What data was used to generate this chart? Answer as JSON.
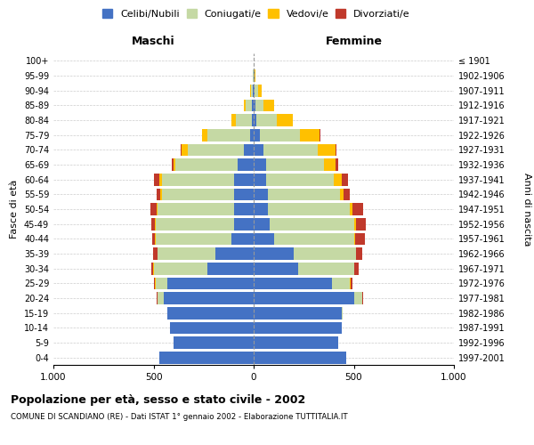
{
  "age_groups": [
    "0-4",
    "5-9",
    "10-14",
    "15-19",
    "20-24",
    "25-29",
    "30-34",
    "35-39",
    "40-44",
    "45-49",
    "50-54",
    "55-59",
    "60-64",
    "65-69",
    "70-74",
    "75-79",
    "80-84",
    "85-89",
    "90-94",
    "95-99",
    "100+"
  ],
  "birth_years": [
    "1997-2001",
    "1992-1996",
    "1987-1991",
    "1982-1986",
    "1977-1981",
    "1972-1976",
    "1967-1971",
    "1962-1966",
    "1957-1961",
    "1952-1956",
    "1947-1951",
    "1942-1946",
    "1937-1941",
    "1932-1936",
    "1927-1931",
    "1922-1926",
    "1917-1921",
    "1912-1916",
    "1907-1911",
    "1902-1906",
    "≤ 1901"
  ],
  "maschi": {
    "celibi": [
      470,
      400,
      420,
      430,
      450,
      430,
      230,
      190,
      110,
      100,
      100,
      100,
      100,
      80,
      50,
      20,
      10,
      8,
      4,
      2,
      2
    ],
    "coniugati": [
      0,
      0,
      0,
      2,
      30,
      60,
      270,
      290,
      380,
      390,
      380,
      360,
      360,
      310,
      280,
      210,
      80,
      30,
      10,
      2,
      0
    ],
    "vedovi": [
      0,
      0,
      0,
      0,
      2,
      2,
      2,
      2,
      2,
      3,
      5,
      5,
      10,
      10,
      30,
      30,
      20,
      10,
      5,
      2,
      0
    ],
    "divorziati": [
      0,
      0,
      0,
      0,
      2,
      5,
      10,
      20,
      15,
      20,
      30,
      20,
      30,
      10,
      5,
      0,
      0,
      0,
      0,
      0,
      0
    ]
  },
  "femmine": {
    "nubili": [
      460,
      420,
      440,
      440,
      500,
      390,
      220,
      200,
      100,
      80,
      70,
      70,
      60,
      60,
      50,
      30,
      15,
      10,
      5,
      3,
      2
    ],
    "coniugate": [
      0,
      0,
      2,
      5,
      40,
      90,
      280,
      310,
      400,
      420,
      410,
      360,
      340,
      290,
      270,
      200,
      100,
      40,
      15,
      3,
      0
    ],
    "vedove": [
      0,
      0,
      0,
      0,
      2,
      3,
      3,
      3,
      5,
      10,
      15,
      20,
      40,
      60,
      90,
      100,
      80,
      50,
      20,
      5,
      0
    ],
    "divorziate": [
      0,
      0,
      0,
      0,
      5,
      10,
      20,
      30,
      50,
      50,
      50,
      30,
      30,
      10,
      5,
      5,
      0,
      0,
      0,
      0,
      0
    ]
  },
  "colors": {
    "celibi": "#4472c4",
    "coniugati": "#c5d9a4",
    "vedovi": "#ffc000",
    "divorziati": "#c0392b"
  },
  "xlim": 1000,
  "title": "Popolazione per età, sesso e stato civile - 2002",
  "subtitle": "COMUNE DI SCANDIANO (RE) - Dati ISTAT 1° gennaio 2002 - Elaborazione TUTTITALIA.IT",
  "ylabel_left": "Fasce di età",
  "ylabel_right": "Anni di nascita",
  "xlabel_left": "Maschi",
  "xlabel_right": "Femmine",
  "xtick_labels": [
    "1.000",
    "500",
    "0",
    "500",
    "1.000"
  ],
  "background_color": "#ffffff",
  "grid_color": "#cccccc"
}
